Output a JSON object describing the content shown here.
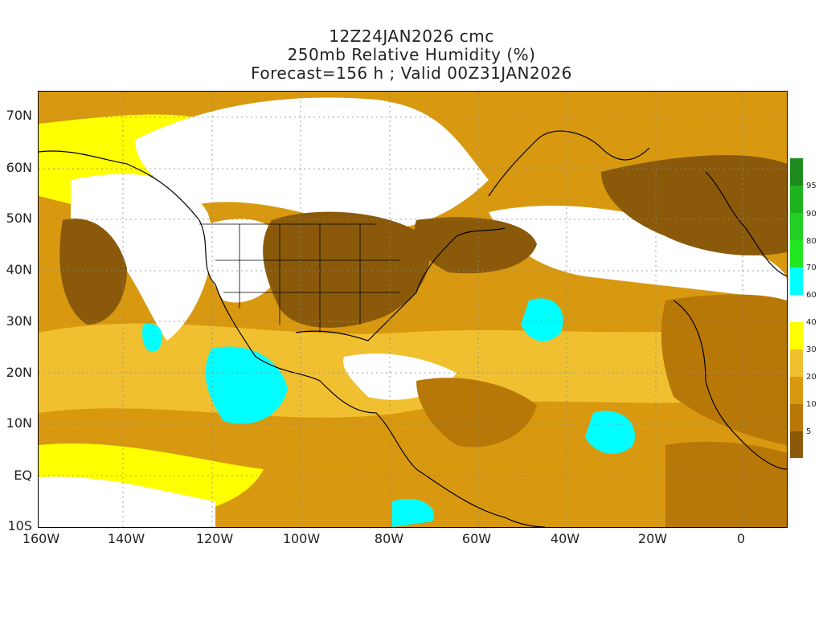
{
  "title": {
    "line1": "12Z24JAN2026 cmc",
    "line2": "250mb Relative Humidity (%)",
    "line3": "Forecast=156 h ; Valid 00Z31JAN2026"
  },
  "axes": {
    "y_labels": [
      "70N",
      "60N",
      "50N",
      "40N",
      "30N",
      "20N",
      "10N",
      "EQ",
      "10S"
    ],
    "x_labels": [
      "160W",
      "140W",
      "120W",
      "100W",
      "80W",
      "60W",
      "40W",
      "20W",
      "0"
    ]
  },
  "colorbar": {
    "labels": [
      "95",
      "90",
      "80",
      "70",
      "60",
      "40",
      "30",
      "20",
      "10",
      "5"
    ],
    "colors": [
      "#1e8c1e",
      "#1fb41f",
      "#22cf22",
      "#22e622",
      "#00ffff",
      "#ffffff",
      "#ffff00",
      "#f0c030",
      "#d89810",
      "#b87808",
      "#8a5a0a"
    ]
  },
  "map_colors": {
    "very_dry": "#8a5a0a",
    "dry": "#b87808",
    "mod_dry": "#d89810",
    "low": "#f0c030",
    "mid": "#ffff00",
    "moist": "#ffffff",
    "humid": "#00ffff"
  }
}
